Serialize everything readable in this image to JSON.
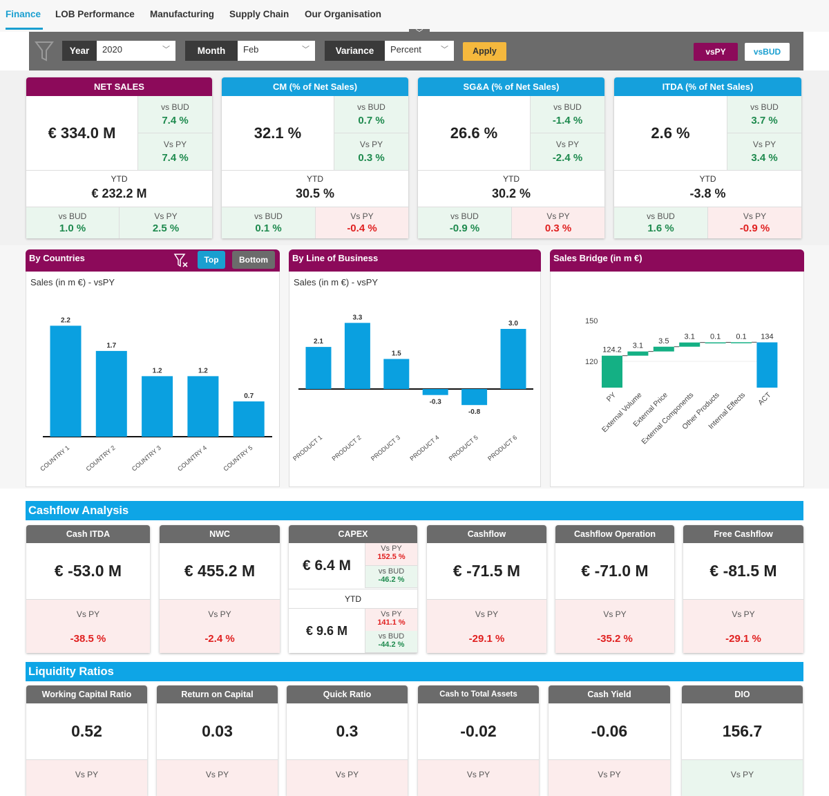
{
  "tabs": [
    "Finance",
    "LOB Performance",
    "Manufacturing",
    "Supply Chain",
    "Our Organisation"
  ],
  "active_tab": "Finance",
  "filters": {
    "year_label": "Year",
    "year_value": "2020",
    "month_label": "Month",
    "month_value": "Feb",
    "variance_label": "Variance",
    "variance_value": "Percent",
    "apply_label": "Apply",
    "vspy_label": "vsPY",
    "vsbud_label": "vsBUD"
  },
  "colors": {
    "purple": "#8c0a5a",
    "blue": "#15a0dc",
    "good": "#1e8a4e",
    "bad": "#e02020",
    "waterfall_green": "#14b084",
    "bar_blue": "#0aa0e0",
    "apply": "#f5b83d"
  },
  "kpis": [
    {
      "title": "NET SALES",
      "header": "purple",
      "value": "€ 334.0 M",
      "vs_bud_label": "vs BUD",
      "vs_bud": "7.4 %",
      "vs_py_label": "Vs PY",
      "vs_py": "7.4 %",
      "ytd_label": "YTD",
      "ytd_value": "€ 232.2 M",
      "ytd_vs_bud": "1.0 %",
      "ytd_vs_bud_status": "good",
      "ytd_vs_py": "2.5 %",
      "ytd_vs_py_status": "good"
    },
    {
      "title": "CM (% of Net Sales)",
      "header": "blue",
      "value": "32.1 %",
      "vs_bud_label": "vs BUD",
      "vs_bud": "0.7 %",
      "vs_py_label": "Vs PY",
      "vs_py": "0.3 %",
      "ytd_label": "YTD",
      "ytd_value": "30.5 %",
      "ytd_vs_bud": "0.1 %",
      "ytd_vs_bud_status": "good",
      "ytd_vs_py": "-0.4 %",
      "ytd_vs_py_status": "bad"
    },
    {
      "title": "SG&A (% of Net Sales)",
      "header": "blue",
      "value": "26.6 %",
      "vs_bud_label": "vs BUD",
      "vs_bud": "-1.4 %",
      "vs_py_label": "Vs PY",
      "vs_py": "-2.4 %",
      "ytd_label": "YTD",
      "ytd_value": "30.2 %",
      "ytd_vs_bud": "-0.9 %",
      "ytd_vs_bud_status": "good",
      "ytd_vs_py": "0.3 %",
      "ytd_vs_py_status": "bad"
    },
    {
      "title": "ITDA (% of Net Sales)",
      "header": "blue",
      "value": "2.6 %",
      "vs_bud_label": "vs BUD",
      "vs_bud": "3.7 %",
      "vs_py_label": "Vs PY",
      "vs_py": "3.4 %",
      "ytd_label": "YTD",
      "ytd_value": "-3.8 %",
      "ytd_vs_bud": "1.6 %",
      "ytd_vs_bud_status": "good",
      "ytd_vs_py": "-0.9 %",
      "ytd_vs_py_status": "bad"
    }
  ],
  "panels": {
    "countries": {
      "title": "By Countries",
      "subtitle": "Sales (in m €) -  vsPY",
      "top_label": "Top",
      "bottom_label": "Bottom"
    },
    "lob": {
      "title": "By Line of Business",
      "subtitle": "Sales (in m €) -  vsPY"
    },
    "bridge": {
      "title": "Sales Bridge (in m €)"
    }
  },
  "chart_data": [
    {
      "type": "bar",
      "categories": [
        "COUNTRY 1",
        "COUNTRY 2",
        "COUNTRY 3",
        "COUNTRY 4",
        "COUNTRY 5"
      ],
      "values": [
        2.2,
        1.7,
        1.2,
        1.2,
        0.7
      ]
    },
    {
      "type": "bar",
      "categories": [
        "PRODUCT 1",
        "PRODUCT 2",
        "PRODUCT 3",
        "PRODUCT 4",
        "PRODUCT 5",
        "PRODUCT 6"
      ],
      "values": [
        2.1,
        3.3,
        1.5,
        -0.3,
        -0.8,
        3.0
      ]
    },
    {
      "type": "waterfall",
      "categories": [
        "PY",
        "External Volume",
        "External Price",
        "External Components",
        "Other Products",
        "Internal Effects",
        "ACT"
      ],
      "values": [
        124.2,
        3.1,
        3.5,
        3.1,
        0.1,
        0.1,
        134
      ],
      "labels": [
        "124.2",
        "3.1",
        "3.5",
        "3.1",
        "0.1",
        "0.1",
        "134"
      ],
      "yticks": [
        "120",
        "150"
      ]
    }
  ],
  "cashflow": {
    "title": "Cashflow Analysis",
    "cards": [
      {
        "title": "Cash ITDA",
        "value": "€ -53.0 M",
        "label": "Vs PY",
        "delta": "-38.5 %",
        "status": "bad"
      },
      {
        "title": "NWC",
        "value": "€ 455.2 M",
        "label": "Vs PY",
        "delta": "-2.4 %",
        "status": "bad"
      },
      {
        "title": "Cashflow",
        "value": "€ -71.5 M",
        "label": "Vs PY",
        "delta": "-29.1 %",
        "status": "bad"
      },
      {
        "title": "Cashflow Operation",
        "value": "€ -71.0 M",
        "label": "Vs PY",
        "delta": "-35.2 %",
        "status": "bad"
      },
      {
        "title": "Free Cashflow",
        "value": "€ -81.5 M",
        "label": "Vs PY",
        "delta": "-29.1 %",
        "status": "bad"
      }
    ],
    "capex": {
      "title": "CAPEX",
      "value": "€ 6.4 M",
      "vs_py_label": "Vs PY",
      "vs_py": "152.5 %",
      "vs_bud_label": "vs BUD",
      "vs_bud": "-46.2 %",
      "ytd_label": "YTD",
      "ytd_value": "€ 9.6 M",
      "ytd_vs_py": "141.1 %",
      "ytd_vs_bud": "-44.2 %"
    }
  },
  "liquidity": {
    "title": "Liquidity Ratios",
    "cards": [
      {
        "title": "Working Capital Ratio",
        "value": "0.52",
        "label": "Vs PY",
        "status": "bad"
      },
      {
        "title": "Return on Capital",
        "value": "0.03",
        "label": "Vs PY",
        "status": "bad"
      },
      {
        "title": "Quick Ratio",
        "value": "0.3",
        "label": "Vs PY",
        "status": "bad"
      },
      {
        "title": "Cash to Total Assets",
        "value": "-0.02",
        "label": "Vs PY",
        "status": "bad"
      },
      {
        "title": "Cash Yield",
        "value": "-0.06",
        "label": "Vs PY",
        "status": "bad"
      },
      {
        "title": "DIO",
        "value": "156.7",
        "label": "Vs PY",
        "status": "good"
      }
    ]
  }
}
